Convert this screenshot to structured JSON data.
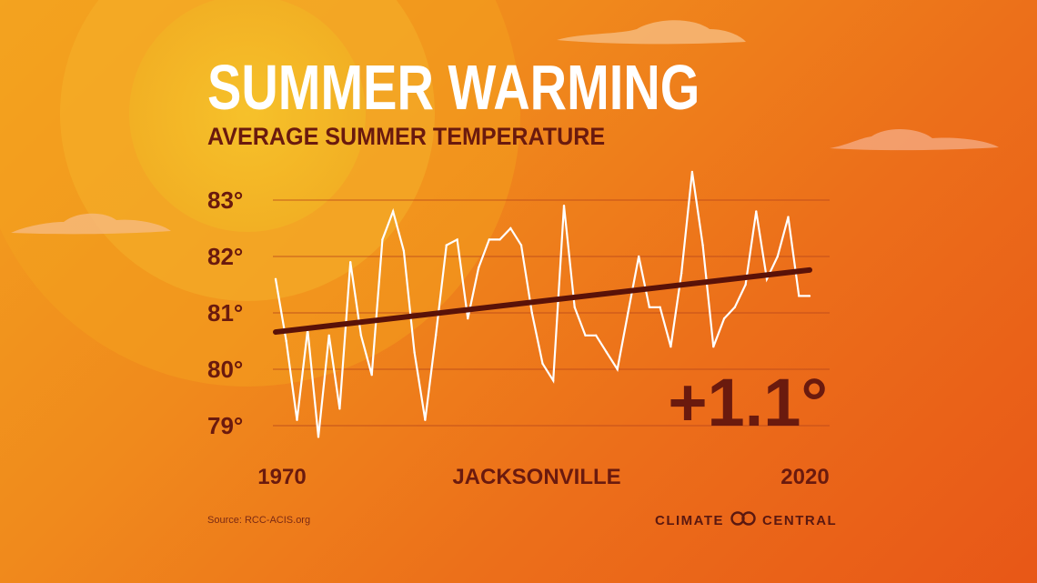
{
  "header": {
    "title": "SUMMER WARMING",
    "subtitle": "AVERAGE SUMMER TEMPERATURE"
  },
  "chart_data": {
    "type": "line",
    "title": "SUMMER WARMING",
    "subtitle": "AVERAGE SUMMER TEMPERATURE",
    "location": "JACKSONVILLE",
    "x": [
      1970,
      1971,
      1972,
      1973,
      1974,
      1975,
      1976,
      1977,
      1978,
      1979,
      1980,
      1981,
      1982,
      1983,
      1984,
      1985,
      1986,
      1987,
      1988,
      1989,
      1990,
      1991,
      1992,
      1993,
      1994,
      1995,
      1996,
      1997,
      1998,
      1999,
      2000,
      2001,
      2002,
      2003,
      2004,
      2005,
      2006,
      2007,
      2008,
      2009,
      2010,
      2011,
      2012,
      2013,
      2014,
      2015,
      2016,
      2017,
      2018,
      2019,
      2020
    ],
    "series": [
      {
        "values": [
          81.6,
          80.5,
          79.1,
          80.7,
          78.8,
          80.6,
          79.3,
          81.9,
          80.6,
          79.9,
          82.3,
          82.8,
          82.1,
          80.3,
          79.1,
          80.6,
          82.2,
          82.3,
          80.9,
          81.8,
          82.3,
          82.3,
          82.5,
          82.2,
          81.0,
          80.1,
          79.8,
          82.9,
          81.1,
          80.6,
          80.6,
          80.3,
          80.0,
          81.0,
          82.0,
          81.1,
          81.1,
          80.4,
          81.7,
          83.5,
          82.2,
          80.4,
          80.9,
          81.1,
          81.5,
          82.8,
          81.6,
          82.0,
          82.7,
          81.3,
          81.3
        ]
      },
      {
        "values": [
          80.66,
          81.76
        ],
        "x": [
          1970,
          2020
        ]
      }
    ],
    "y_ticks": [
      "83°",
      "82°",
      "81°",
      "80°",
      "79°"
    ],
    "y_tick_values": [
      83,
      82,
      81,
      80,
      79
    ],
    "ylim": [
      78.7,
      83.6
    ],
    "x_tick_labels": [
      "1970",
      "2020"
    ],
    "grid": true,
    "change_label": "+1.1°",
    "colors": {
      "data_line": "#ffffff",
      "trend_line": "#5a1208",
      "grid": "#b8461a",
      "text": "#6a1a0e"
    }
  },
  "footer": {
    "source": "Source: RCC-ACIS.org",
    "brand_left": "CLIMATE",
    "brand_right": "CENTRAL",
    "brand_icon": "climate-central-logo-icon"
  }
}
